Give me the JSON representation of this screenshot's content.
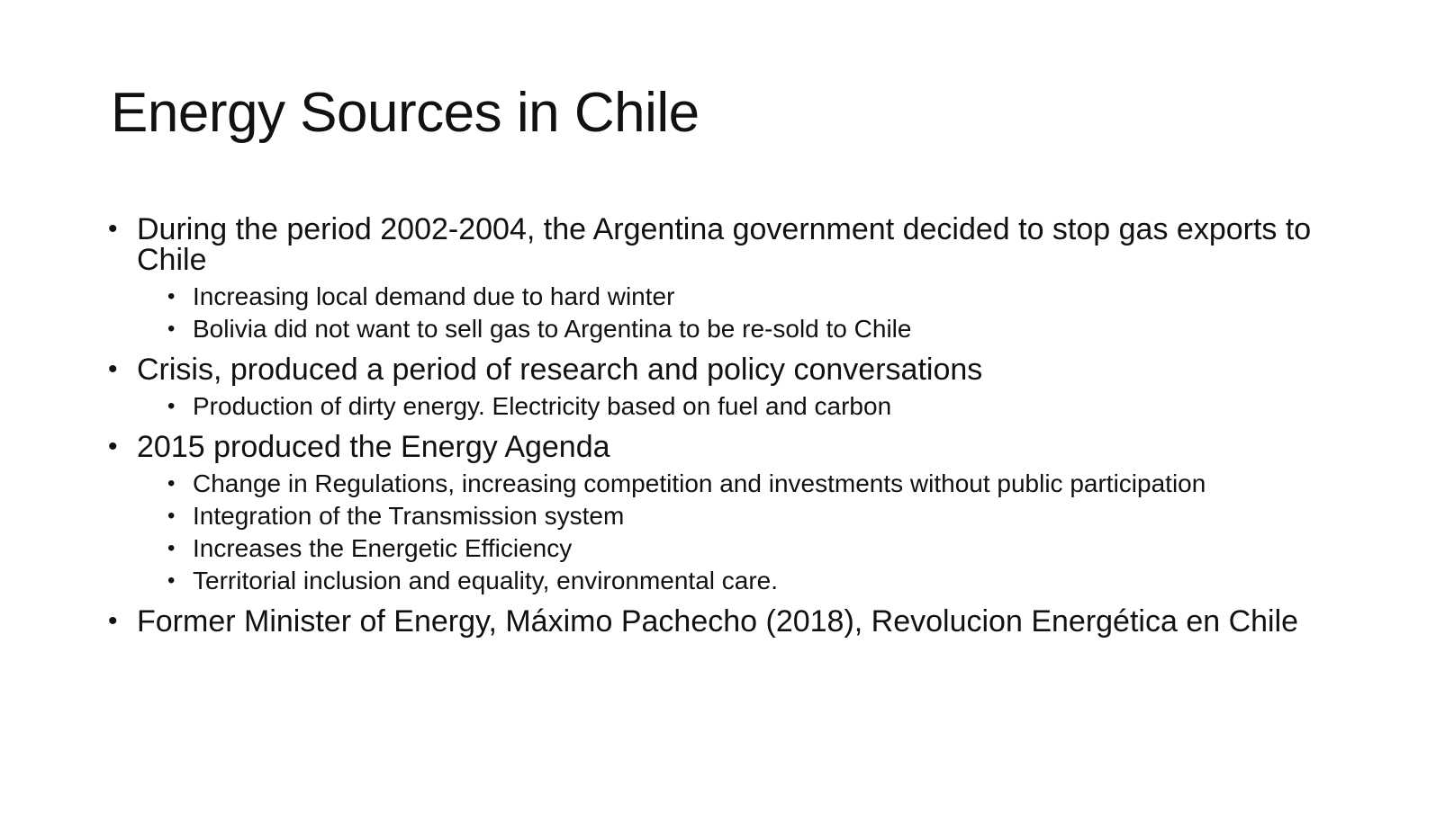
{
  "slide": {
    "title": "Energy Sources in Chile",
    "bullets": [
      {
        "text": "During the period 2002-2004, the Argentina government decided to stop gas exports to Chile",
        "sub": [
          "Increasing local demand due to hard winter",
          "Bolivia did not want to sell gas to Argentina to be re-sold to Chile"
        ]
      },
      {
        "text": "Crisis, produced a period of research and policy conversations",
        "sub": [
          "Production of dirty energy. Electricity based on fuel and carbon"
        ]
      },
      {
        "text": "2015 produced the Energy Agenda",
        "sub": [
          "Change in Regulations, increasing competition and investments without public participation",
          "Integration of the Transmission system",
          "Increases the Energetic Efficiency",
          "Territorial inclusion and equality, environmental care."
        ]
      },
      {
        "text": "Former Minister of Energy, Máximo Pachecho (2018), Revolucion Energética en Chile",
        "sub": []
      }
    ]
  }
}
